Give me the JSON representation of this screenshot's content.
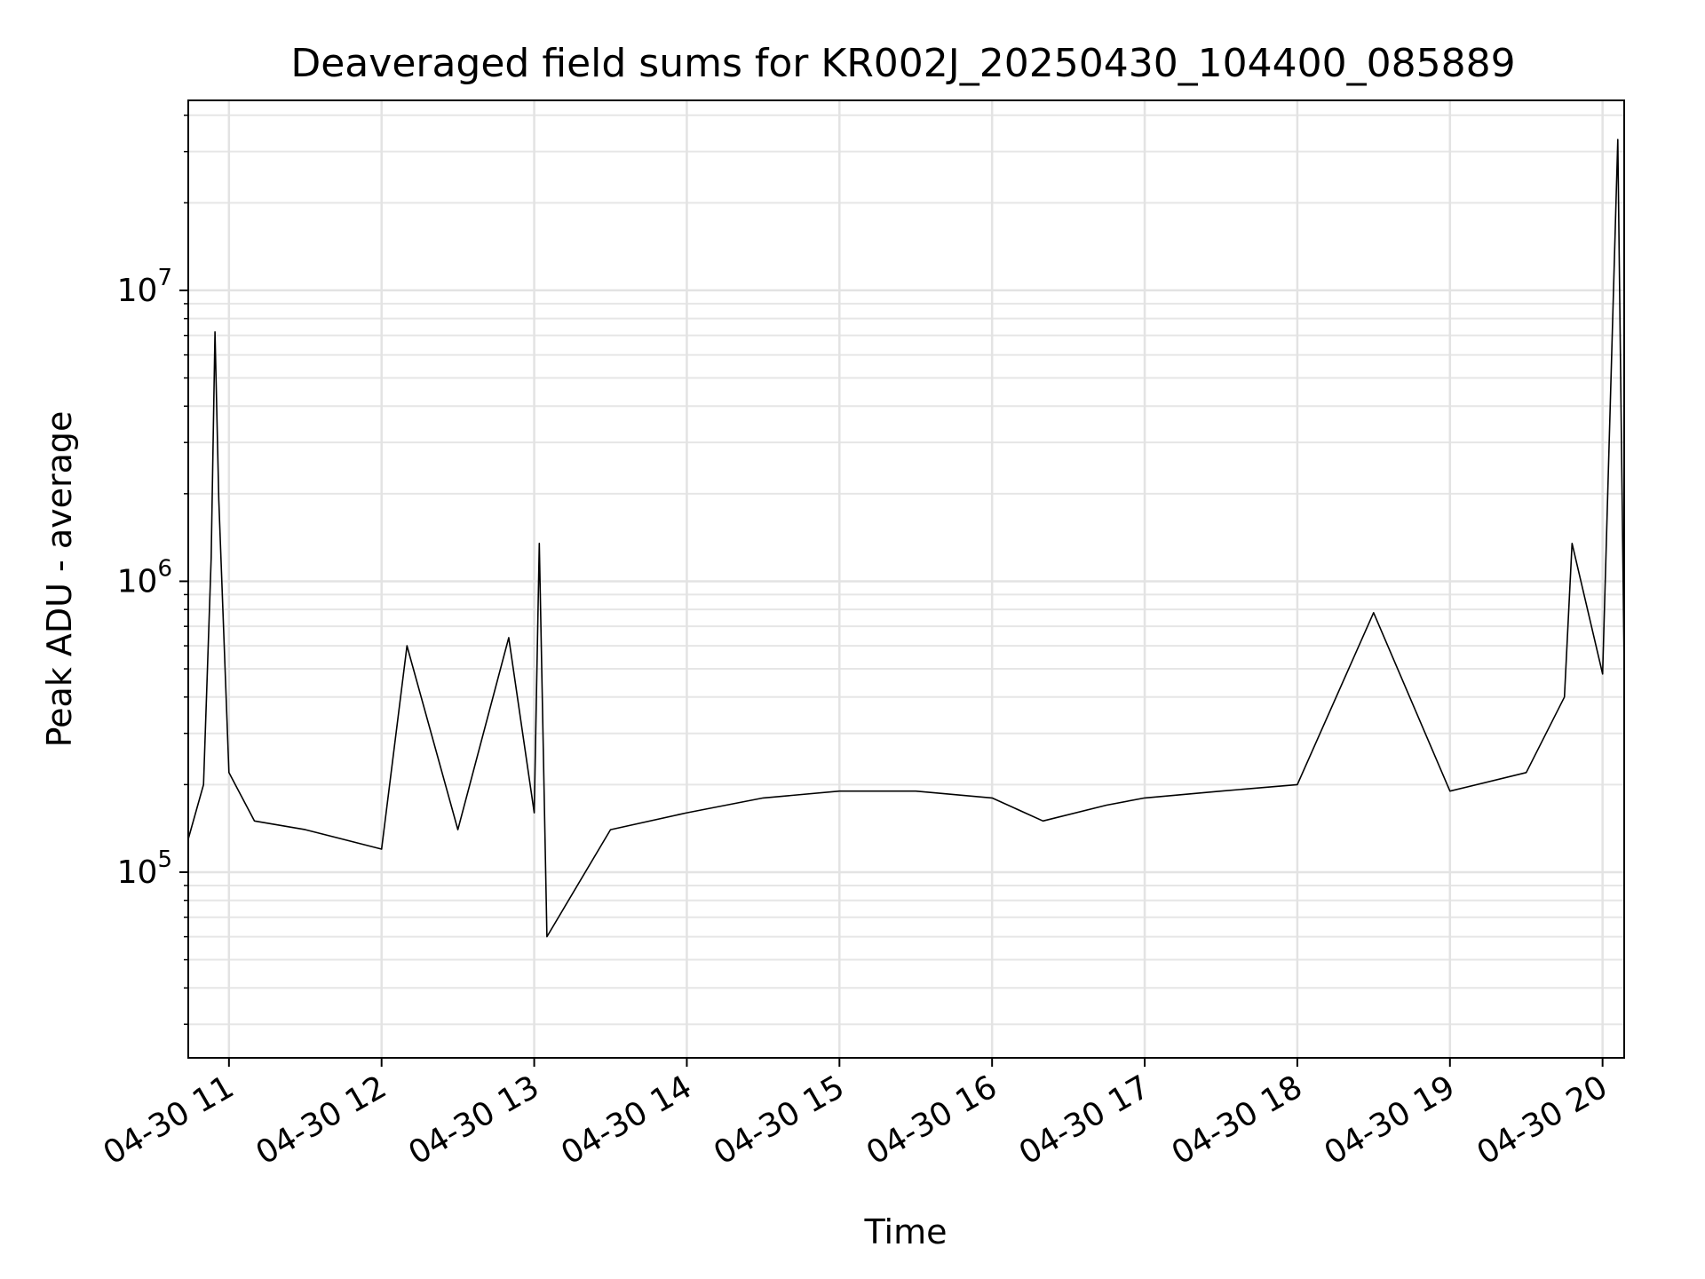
{
  "chart_data": {
    "type": "line",
    "title": "Deaveraged field sums for KR002J_20250430_104400_085889",
    "xlabel": "Time",
    "ylabel": "Peak ADU - average",
    "yscale": "log",
    "ylim": [
      23000,
      45000000
    ],
    "xlim": [
      "2025-04-30T10:44:00",
      "2025-04-30T20:08:30"
    ],
    "grid": true,
    "x_ticks": [
      {
        "t": "2025-04-30T11:00:00",
        "label": "04-30 11"
      },
      {
        "t": "2025-04-30T12:00:00",
        "label": "04-30 12"
      },
      {
        "t": "2025-04-30T13:00:00",
        "label": "04-30 13"
      },
      {
        "t": "2025-04-30T14:00:00",
        "label": "04-30 14"
      },
      {
        "t": "2025-04-30T15:00:00",
        "label": "04-30 15"
      },
      {
        "t": "2025-04-30T16:00:00",
        "label": "04-30 16"
      },
      {
        "t": "2025-04-30T17:00:00",
        "label": "04-30 17"
      },
      {
        "t": "2025-04-30T18:00:00",
        "label": "04-30 18"
      },
      {
        "t": "2025-04-30T19:00:00",
        "label": "04-30 19"
      },
      {
        "t": "2025-04-30T20:00:00",
        "label": "04-30 20"
      }
    ],
    "y_ticks": [
      {
        "value": 100000,
        "base": "10",
        "exp": "5"
      },
      {
        "value": 1000000,
        "base": "10",
        "exp": "6"
      },
      {
        "value": 10000000,
        "base": "10",
        "exp": "7"
      }
    ],
    "series": [
      {
        "color": "#000000",
        "points": [
          [
            "2025-04-30T10:44:00",
            130000
          ],
          [
            "2025-04-30T10:50:00",
            200000
          ],
          [
            "2025-04-30T10:53:00",
            1200000
          ],
          [
            "2025-04-30T10:54:30",
            7200000
          ],
          [
            "2025-04-30T10:56:00",
            1900000
          ],
          [
            "2025-04-30T11:00:00",
            220000
          ],
          [
            "2025-04-30T11:10:00",
            150000
          ],
          [
            "2025-04-30T11:30:00",
            140000
          ],
          [
            "2025-04-30T12:00:00",
            120000
          ],
          [
            "2025-04-30T12:10:00",
            600000
          ],
          [
            "2025-04-30T12:30:00",
            140000
          ],
          [
            "2025-04-30T12:50:00",
            640000
          ],
          [
            "2025-04-30T13:00:00",
            160000
          ],
          [
            "2025-04-30T13:02:00",
            1350000
          ],
          [
            "2025-04-30T13:05:00",
            60000
          ],
          [
            "2025-04-30T13:30:00",
            140000
          ],
          [
            "2025-04-30T14:00:00",
            160000
          ],
          [
            "2025-04-30T14:30:00",
            180000
          ],
          [
            "2025-04-30T15:00:00",
            190000
          ],
          [
            "2025-04-30T15:30:00",
            190000
          ],
          [
            "2025-04-30T16:00:00",
            180000
          ],
          [
            "2025-04-30T16:20:00",
            150000
          ],
          [
            "2025-04-30T16:45:00",
            170000
          ],
          [
            "2025-04-30T17:00:00",
            180000
          ],
          [
            "2025-04-30T17:30:00",
            190000
          ],
          [
            "2025-04-30T18:00:00",
            200000
          ],
          [
            "2025-04-30T18:30:00",
            780000
          ],
          [
            "2025-04-30T19:00:00",
            190000
          ],
          [
            "2025-04-30T19:30:00",
            220000
          ],
          [
            "2025-04-30T19:45:00",
            400000
          ],
          [
            "2025-04-30T19:48:00",
            1350000
          ],
          [
            "2025-04-30T20:00:00",
            480000
          ],
          [
            "2025-04-30T20:06:00",
            33000000
          ],
          [
            "2025-04-30T20:08:30",
            500000
          ]
        ]
      }
    ]
  }
}
